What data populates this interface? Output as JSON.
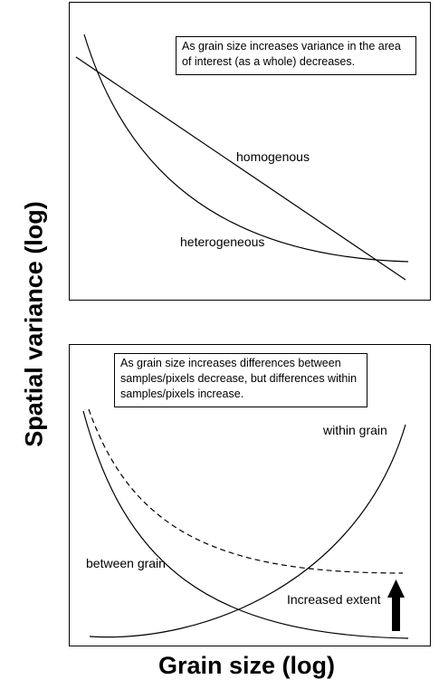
{
  "axes": {
    "y_label": "Spatial variance (log)",
    "x_label": "Grain size (log)"
  },
  "top_panel": {
    "note": "As grain size increases variance in the area of interest (as a whole) decreases.",
    "curves": {
      "homogenous": "homogenous",
      "heterogeneous": "heterogeneous"
    }
  },
  "bottom_panel": {
    "note": "As grain size increases differences between samples/pixels decrease, but differences within samples/pixels increase.",
    "curves": {
      "within_grain": "within grain",
      "between_grain": "between grain",
      "increased_extent": "Increased extent"
    }
  },
  "colors": {
    "line": "#000000",
    "background": "#ffffff"
  }
}
